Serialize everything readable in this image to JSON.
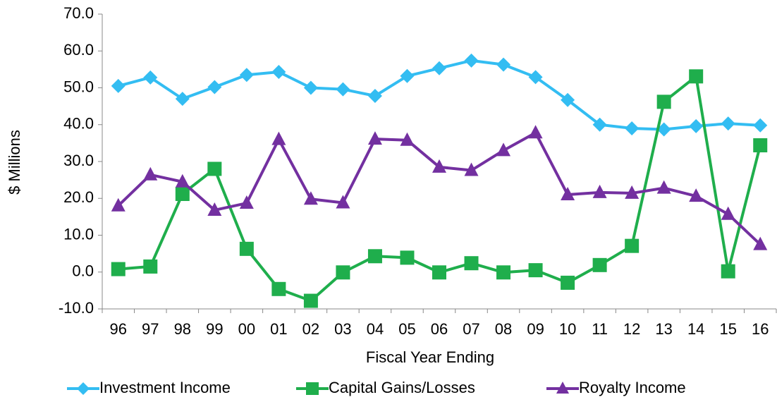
{
  "chart_data": {
    "type": "line",
    "x_label": "Fiscal Year Ending",
    "y_label": "$ Millions",
    "categories": [
      "96",
      "97",
      "98",
      "99",
      "00",
      "01",
      "02",
      "03",
      "04",
      "05",
      "06",
      "07",
      "08",
      "09",
      "10",
      "11",
      "12",
      "13",
      "14",
      "15",
      "16"
    ],
    "series": [
      {
        "name": "Investment Income",
        "color": "#33bdf2",
        "marker": "diamond",
        "values": [
          50.5,
          52.8,
          47.0,
          50.2,
          53.5,
          54.3,
          50.0,
          49.6,
          47.8,
          53.2,
          55.3,
          57.4,
          56.3,
          52.9,
          46.7,
          40.0,
          39.0,
          38.7,
          39.6,
          40.3,
          39.8
        ]
      },
      {
        "name": "Capital Gains/Losses",
        "color": "#1fae4c",
        "marker": "square",
        "values": [
          0.8,
          1.5,
          21.2,
          28.0,
          6.3,
          -4.6,
          -7.8,
          -0.1,
          4.3,
          3.9,
          -0.1,
          2.4,
          -0.1,
          0.5,
          -2.9,
          1.9,
          7.1,
          46.2,
          53.1,
          0.2,
          34.4
        ]
      },
      {
        "name": "Royalty Income",
        "color": "#7330a0",
        "marker": "triangle",
        "values": [
          18.0,
          26.4,
          24.5,
          16.8,
          18.7,
          36.0,
          19.8,
          18.8,
          36.1,
          35.8,
          28.5,
          27.6,
          33.0,
          37.8,
          21.0,
          21.6,
          21.4,
          22.8,
          20.6,
          15.7,
          7.5
        ]
      }
    ],
    "ylim": [
      -10,
      70
    ],
    "yticks": [
      {
        "value": -10,
        "label": "-10.0"
      },
      {
        "value": 0,
        "label": "0.0"
      },
      {
        "value": 10,
        "label": "10.0"
      },
      {
        "value": 20,
        "label": "20.0"
      },
      {
        "value": 30,
        "label": "30.0"
      },
      {
        "value": 40,
        "label": "40.0"
      },
      {
        "value": 50,
        "label": "50.0"
      },
      {
        "value": 60,
        "label": "60.0"
      },
      {
        "value": 70,
        "label": "70.0"
      }
    ],
    "grid": false,
    "legend": "bottom"
  }
}
